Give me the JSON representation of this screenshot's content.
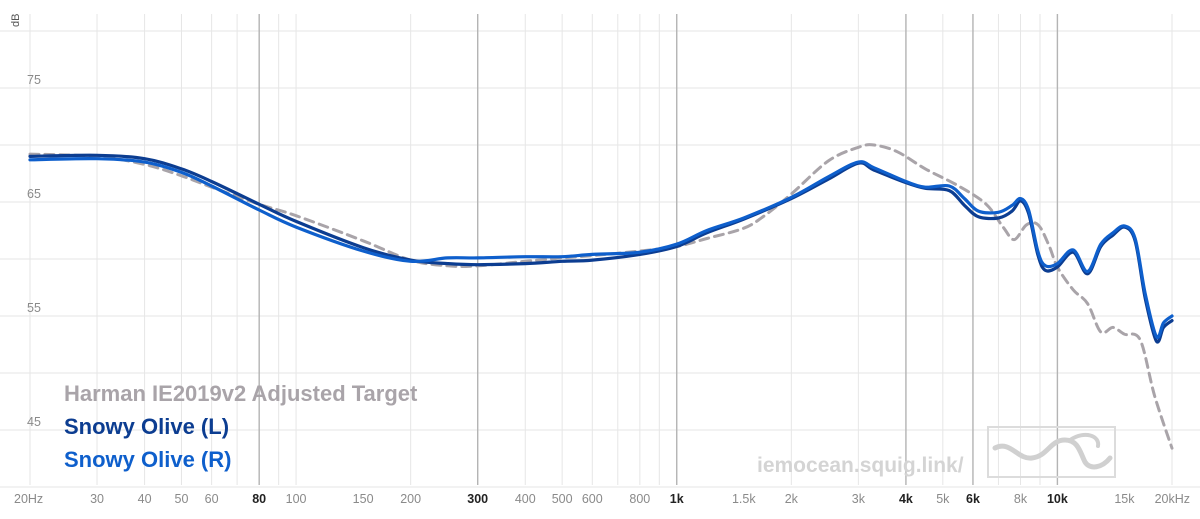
{
  "chart_data": {
    "type": "line",
    "xscale": "log",
    "xlim": [
      20,
      20000
    ],
    "ylim": [
      40,
      80
    ],
    "ylabel": "dB",
    "yticks": [
      {
        "value": 75,
        "label": "75"
      },
      {
        "value": 65,
        "label": "65"
      },
      {
        "value": 55,
        "label": "55"
      },
      {
        "value": 45,
        "label": "45"
      }
    ],
    "xticks": [
      {
        "value": 20,
        "label": "20Hz"
      },
      {
        "value": 30,
        "label": "30"
      },
      {
        "value": 40,
        "label": "40"
      },
      {
        "value": 50,
        "label": "50"
      },
      {
        "value": 60,
        "label": "60"
      },
      {
        "value": 80,
        "label": "80"
      },
      {
        "value": 100,
        "label": "100"
      },
      {
        "value": 150,
        "label": "150"
      },
      {
        "value": 200,
        "label": "200"
      },
      {
        "value": 300,
        "label": "300"
      },
      {
        "value": 400,
        "label": "400"
      },
      {
        "value": 500,
        "label": "500"
      },
      {
        "value": 600,
        "label": "600"
      },
      {
        "value": 800,
        "label": "800"
      },
      {
        "value": 1000,
        "label": "1k"
      },
      {
        "value": 1500,
        "label": "1.5k"
      },
      {
        "value": 2000,
        "label": "2k"
      },
      {
        "value": 3000,
        "label": "3k"
      },
      {
        "value": 4000,
        "label": "4k"
      },
      {
        "value": 5000,
        "label": "5k"
      },
      {
        "value": 6000,
        "label": "6k"
      },
      {
        "value": 8000,
        "label": "8k"
      },
      {
        "value": 10000,
        "label": "10k"
      },
      {
        "value": 15000,
        "label": "15k"
      },
      {
        "value": 20000,
        "label": "20kHz"
      }
    ],
    "bold_ticks": [
      80,
      300,
      1000,
      4000,
      6000,
      10000
    ],
    "major_gridlines": [
      80,
      300,
      1000,
      4000,
      6000,
      10000
    ],
    "series": [
      {
        "name": "Harman IE2019v2 Adjusted Target",
        "color": "#a9a4a9",
        "style": "dashed",
        "points": [
          [
            20,
            69.2
          ],
          [
            30,
            69.0
          ],
          [
            40,
            68.3
          ],
          [
            50,
            67.3
          ],
          [
            60,
            66.3
          ],
          [
            80,
            64.8
          ],
          [
            100,
            63.8
          ],
          [
            150,
            61.6
          ],
          [
            200,
            59.9
          ],
          [
            250,
            59.4
          ],
          [
            300,
            59.4
          ],
          [
            400,
            59.8
          ],
          [
            500,
            60.1
          ],
          [
            600,
            60.3
          ],
          [
            800,
            60.7
          ],
          [
            1000,
            61.1
          ],
          [
            1200,
            61.8
          ],
          [
            1500,
            62.7
          ],
          [
            1700,
            63.8
          ],
          [
            2000,
            65.7
          ],
          [
            2500,
            68.6
          ],
          [
            3000,
            69.8
          ],
          [
            3300,
            70.0
          ],
          [
            3800,
            69.4
          ],
          [
            4500,
            67.9
          ],
          [
            5500,
            66.4
          ],
          [
            6500,
            64.8
          ],
          [
            7200,
            62.8
          ],
          [
            7700,
            61.7
          ],
          [
            8300,
            63.0
          ],
          [
            8900,
            63.0
          ],
          [
            9500,
            61.2
          ],
          [
            10000,
            59.3
          ],
          [
            11000,
            57.3
          ],
          [
            12000,
            56.1
          ],
          [
            13000,
            53.6
          ],
          [
            14000,
            54.0
          ],
          [
            15000,
            53.4
          ],
          [
            16500,
            52.9
          ],
          [
            18000,
            48.0
          ],
          [
            20000,
            43.4
          ]
        ]
      },
      {
        "name": "Snowy Olive (L)",
        "color": "#0c3d91",
        "style": "solid",
        "points": [
          [
            20,
            69.0
          ],
          [
            30,
            69.1
          ],
          [
            40,
            68.8
          ],
          [
            50,
            67.9
          ],
          [
            60,
            66.8
          ],
          [
            80,
            64.8
          ],
          [
            100,
            63.3
          ],
          [
            150,
            61.0
          ],
          [
            200,
            59.9
          ],
          [
            250,
            59.6
          ],
          [
            300,
            59.5
          ],
          [
            400,
            59.6
          ],
          [
            500,
            59.8
          ],
          [
            600,
            59.9
          ],
          [
            800,
            60.4
          ],
          [
            1000,
            61.1
          ],
          [
            1200,
            62.3
          ],
          [
            1500,
            63.5
          ],
          [
            2000,
            65.3
          ],
          [
            2500,
            67.0
          ],
          [
            3000,
            68.4
          ],
          [
            3300,
            67.8
          ],
          [
            4000,
            66.7
          ],
          [
            4500,
            66.2
          ],
          [
            5200,
            66.0
          ],
          [
            5700,
            64.7
          ],
          [
            6200,
            63.7
          ],
          [
            7000,
            63.6
          ],
          [
            7600,
            64.2
          ],
          [
            8000,
            65.1
          ],
          [
            8400,
            64.0
          ],
          [
            8900,
            60.3
          ],
          [
            9300,
            59.0
          ],
          [
            10000,
            59.3
          ],
          [
            11000,
            60.6
          ],
          [
            12000,
            58.7
          ],
          [
            13000,
            61.1
          ],
          [
            14000,
            62.1
          ],
          [
            15000,
            62.8
          ],
          [
            16000,
            61.6
          ],
          [
            17000,
            56.6
          ],
          [
            18200,
            52.8
          ],
          [
            19000,
            54.0
          ],
          [
            20000,
            54.6
          ]
        ]
      },
      {
        "name": "Snowy Olive (R)",
        "color": "#0e5fcc",
        "style": "solid",
        "points": [
          [
            20,
            68.7
          ],
          [
            30,
            68.8
          ],
          [
            40,
            68.5
          ],
          [
            50,
            67.6
          ],
          [
            60,
            66.4
          ],
          [
            80,
            64.3
          ],
          [
            100,
            62.8
          ],
          [
            150,
            60.7
          ],
          [
            200,
            59.8
          ],
          [
            250,
            60.1
          ],
          [
            300,
            60.1
          ],
          [
            400,
            60.2
          ],
          [
            500,
            60.2
          ],
          [
            600,
            60.4
          ],
          [
            800,
            60.6
          ],
          [
            1000,
            61.3
          ],
          [
            1200,
            62.5
          ],
          [
            1500,
            63.6
          ],
          [
            2000,
            65.4
          ],
          [
            2500,
            67.2
          ],
          [
            3000,
            68.5
          ],
          [
            3300,
            68.0
          ],
          [
            4000,
            66.8
          ],
          [
            4500,
            66.3
          ],
          [
            5200,
            66.4
          ],
          [
            5700,
            65.3
          ],
          [
            6200,
            64.2
          ],
          [
            7000,
            64.1
          ],
          [
            7600,
            64.7
          ],
          [
            8000,
            65.3
          ],
          [
            8400,
            64.3
          ],
          [
            8900,
            60.6
          ],
          [
            9300,
            59.4
          ],
          [
            10000,
            59.6
          ],
          [
            11000,
            60.8
          ],
          [
            12000,
            58.9
          ],
          [
            13000,
            61.3
          ],
          [
            14000,
            62.3
          ],
          [
            15000,
            62.9
          ],
          [
            16000,
            61.8
          ],
          [
            17000,
            57.0
          ],
          [
            18200,
            53.2
          ],
          [
            19000,
            54.4
          ],
          [
            20000,
            55.0
          ]
        ]
      }
    ],
    "legend": {
      "position": "bottom-left",
      "entries": [
        {
          "label": "Harman IE2019v2 Adjusted Target",
          "color": "#a9a4a9"
        },
        {
          "label": "Snowy Olive (L)",
          "color": "#0c3d91"
        },
        {
          "label": "Snowy Olive (R)",
          "color": "#0e5fcc"
        }
      ]
    },
    "watermark": "iemocean.squig.link/",
    "grid": true
  }
}
